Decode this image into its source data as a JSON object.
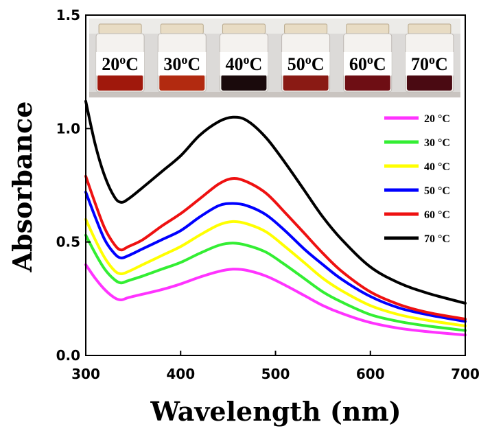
{
  "chart_data": {
    "type": "line",
    "xlabel": "Wavelength (nm)",
    "ylabel": "Absorbance",
    "xlim": [
      300,
      700
    ],
    "ylim": [
      0.0,
      1.5
    ],
    "xticks": [
      300,
      400,
      500,
      600,
      700
    ],
    "yticks": [
      0.0,
      0.5,
      1.0,
      1.5
    ],
    "xtick_labels": [
      "300",
      "400",
      "500",
      "600",
      "700"
    ],
    "ytick_labels": [
      "0.0",
      "0.5",
      "1.0",
      "1.5"
    ],
    "legend_position": "right",
    "x": [
      300,
      310,
      320,
      330,
      337,
      345,
      360,
      380,
      400,
      420,
      440,
      455,
      470,
      490,
      510,
      530,
      550,
      570,
      600,
      630,
      660,
      700
    ],
    "series": [
      {
        "name": "20 °C",
        "color": "#ff33ff",
        "values": [
          0.4,
          0.34,
          0.29,
          0.255,
          0.245,
          0.255,
          0.27,
          0.29,
          0.315,
          0.345,
          0.37,
          0.38,
          0.375,
          0.35,
          0.31,
          0.265,
          0.22,
          0.185,
          0.145,
          0.12,
          0.105,
          0.09
        ]
      },
      {
        "name": "30 °C",
        "color": "#33ee33",
        "values": [
          0.53,
          0.45,
          0.38,
          0.335,
          0.32,
          0.33,
          0.35,
          0.38,
          0.41,
          0.45,
          0.485,
          0.495,
          0.485,
          0.455,
          0.4,
          0.34,
          0.28,
          0.235,
          0.18,
          0.15,
          0.13,
          0.11
        ]
      },
      {
        "name": "40 °C",
        "color": "#ffff00",
        "values": [
          0.6,
          0.51,
          0.43,
          0.375,
          0.36,
          0.37,
          0.4,
          0.44,
          0.48,
          0.53,
          0.575,
          0.59,
          0.58,
          0.545,
          0.48,
          0.41,
          0.34,
          0.285,
          0.22,
          0.18,
          0.155,
          0.13
        ]
      },
      {
        "name": "50 °C",
        "color": "#0000ff",
        "values": [
          0.72,
          0.61,
          0.51,
          0.45,
          0.43,
          0.44,
          0.47,
          0.51,
          0.55,
          0.61,
          0.66,
          0.67,
          0.66,
          0.62,
          0.55,
          0.47,
          0.4,
          0.335,
          0.26,
          0.21,
          0.18,
          0.15
        ]
      },
      {
        "name": "60 °C",
        "color": "#ee1111",
        "values": [
          0.79,
          0.67,
          0.56,
          0.49,
          0.465,
          0.48,
          0.51,
          0.57,
          0.625,
          0.69,
          0.755,
          0.78,
          0.765,
          0.715,
          0.63,
          0.54,
          0.45,
          0.37,
          0.28,
          0.225,
          0.19,
          0.16
        ]
      },
      {
        "name": "70 °C",
        "color": "#000000",
        "values": [
          1.12,
          0.93,
          0.79,
          0.7,
          0.675,
          0.69,
          0.74,
          0.81,
          0.88,
          0.97,
          1.03,
          1.05,
          1.035,
          0.96,
          0.85,
          0.73,
          0.61,
          0.51,
          0.39,
          0.32,
          0.275,
          0.23
        ]
      }
    ],
    "inset_photo": {
      "vial_labels": [
        "20",
        "30",
        "40",
        "50",
        "60",
        "70"
      ],
      "unit": "C",
      "superscript": "o",
      "liquid_colors": [
        "#a0180c",
        "#b22a10",
        "#1a0a0c",
        "#8a1a14",
        "#6e0e14",
        "#4a0a12"
      ],
      "background_color": "#dcdad8"
    }
  }
}
